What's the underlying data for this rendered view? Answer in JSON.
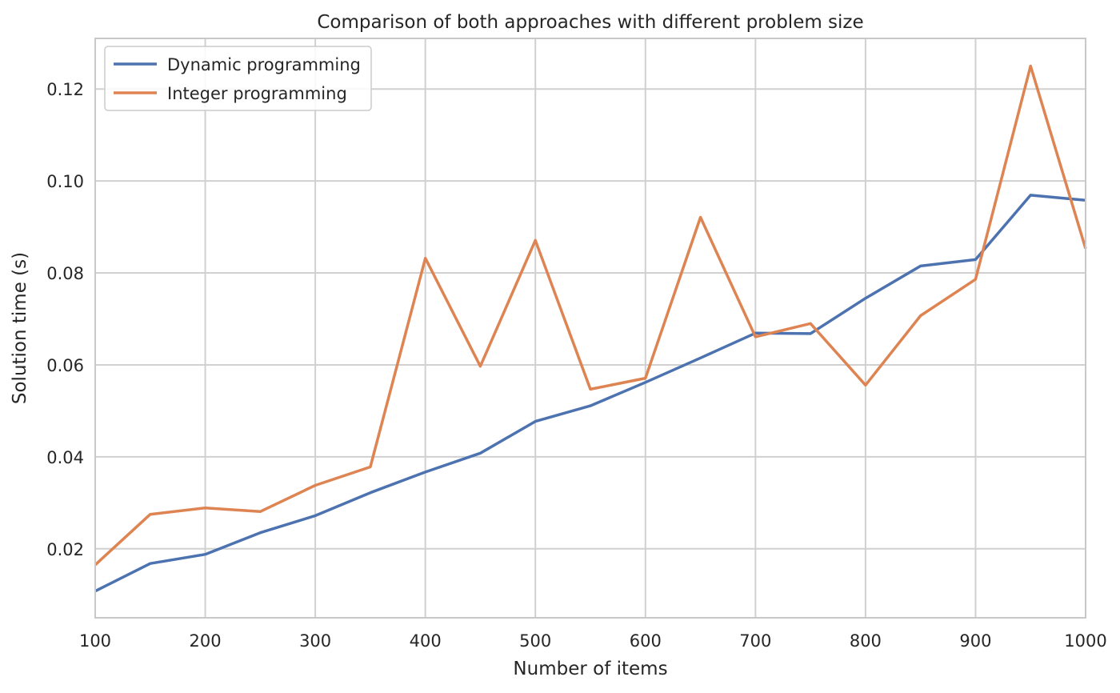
{
  "chart_data": {
    "type": "line",
    "title": "Comparison of both approaches with different problem size",
    "xlabel": "Number of items",
    "ylabel": "Solution time (s)",
    "xlim": [
      100,
      1000
    ],
    "ylim": [
      0.005,
      0.131
    ],
    "xticks": [
      100,
      200,
      300,
      400,
      500,
      600,
      700,
      800,
      900,
      1000
    ],
    "xtick_labels": [
      "100",
      "200",
      "300",
      "400",
      "500",
      "600",
      "700",
      "800",
      "900",
      "1000"
    ],
    "yticks": [
      0.02,
      0.04,
      0.06,
      0.08,
      0.1,
      0.12
    ],
    "ytick_labels": [
      "0.02",
      "0.04",
      "0.06",
      "0.08",
      "0.10",
      "0.12"
    ],
    "grid": true,
    "legend_position": "top-left",
    "x": [
      100,
      150,
      200,
      250,
      300,
      350,
      400,
      450,
      500,
      550,
      600,
      650,
      700,
      750,
      800,
      850,
      900,
      950,
      1000
    ],
    "series": [
      {
        "name": "Dynamic programming",
        "color": "#4c72b0",
        "values": [
          0.0108,
          0.0168,
          0.0188,
          0.0235,
          0.0272,
          0.0322,
          0.0367,
          0.0408,
          0.0477,
          0.0511,
          0.0562,
          0.0615,
          0.0669,
          0.0668,
          0.0745,
          0.0815,
          0.0829,
          0.0969,
          0.0958
        ]
      },
      {
        "name": "Integer programming",
        "color": "#dd8452",
        "values": [
          0.0165,
          0.0275,
          0.0289,
          0.0281,
          0.0338,
          0.0378,
          0.0832,
          0.0597,
          0.0871,
          0.0547,
          0.0571,
          0.0921,
          0.0661,
          0.069,
          0.0556,
          0.0707,
          0.0786,
          0.125,
          0.0853
        ]
      }
    ]
  }
}
